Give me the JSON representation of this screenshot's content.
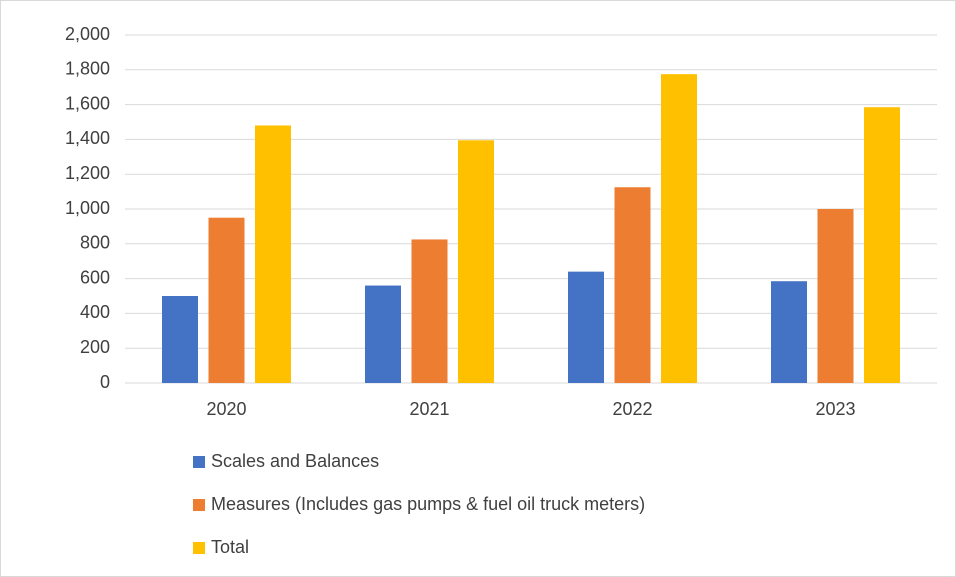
{
  "chart_data": {
    "type": "bar",
    "categories": [
      "2020",
      "2021",
      "2022",
      "2023"
    ],
    "series": [
      {
        "name": "Scales and Balances",
        "color": "#4472c4",
        "values": [
          500,
          560,
          640,
          585
        ]
      },
      {
        "name": "Measures (Includes gas pumps & fuel oil truck meters)",
        "color": "#ed7d31",
        "values": [
          950,
          825,
          1125,
          1000
        ]
      },
      {
        "name": "Total",
        "color": "#ffc000",
        "values": [
          1480,
          1395,
          1775,
          1585
        ]
      }
    ],
    "ylim": [
      0,
      2000
    ],
    "yticks": [
      0,
      200,
      400,
      600,
      800,
      {
        "value": 1000,
        "label": "1,000"
      },
      {
        "value": 1200,
        "label": "1,200"
      },
      {
        "value": 1400,
        "label": "1,400"
      },
      {
        "value": 1600,
        "label": "1,600"
      },
      {
        "value": 1800,
        "label": "1,800"
      },
      {
        "value": 2000,
        "label": "2,000"
      }
    ],
    "grid": true,
    "legend": "bottom"
  }
}
